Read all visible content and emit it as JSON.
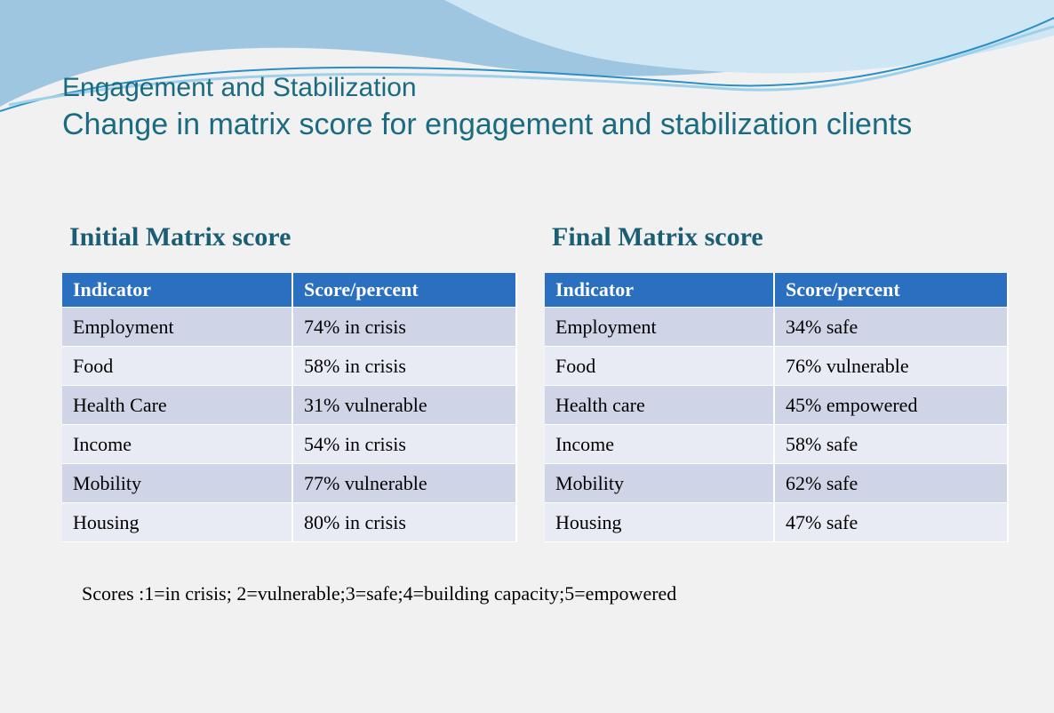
{
  "title": "Engagement and Stabilization",
  "subtitle": "Change in matrix score for engagement and stabilization clients",
  "tables": [
    {
      "heading": "Initial Matrix score",
      "header": [
        "Indicator",
        "Score/percent"
      ],
      "rows": [
        [
          "Employment",
          "74% in crisis"
        ],
        [
          "Food",
          "58% in crisis"
        ],
        [
          "Health Care",
          "31% vulnerable"
        ],
        [
          "Income",
          "54% in crisis"
        ],
        [
          "Mobility",
          "77% vulnerable"
        ],
        [
          "Housing",
          "80% in crisis"
        ]
      ]
    },
    {
      "heading": "Final Matrix score",
      "header": [
        "Indicator",
        "Score/percent"
      ],
      "rows": [
        [
          "Employment",
          "34% safe"
        ],
        [
          "Food",
          "76% vulnerable"
        ],
        [
          "Health care",
          "45% empowered"
        ],
        [
          "Income",
          "58% safe"
        ],
        [
          "Mobility",
          "62% safe"
        ],
        [
          "Housing",
          "47% safe"
        ]
      ]
    }
  ],
  "footnote": "Scores :1=in crisis; 2=vulnerable;3=safe;4=building capacity;5=empowered"
}
